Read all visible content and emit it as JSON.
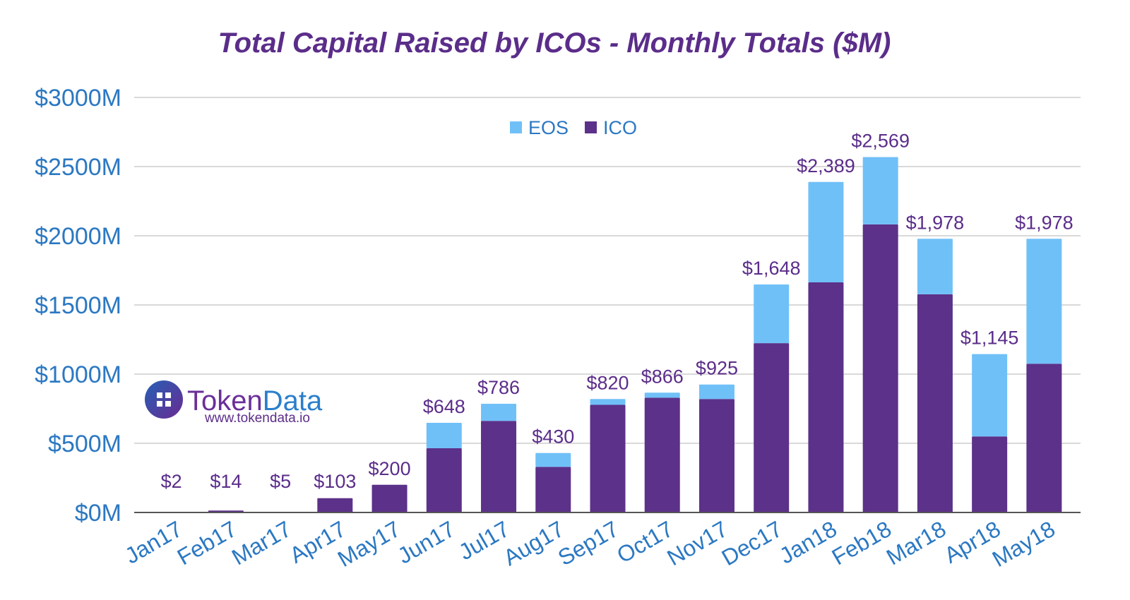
{
  "chart_data": {
    "type": "bar",
    "stacked": true,
    "title": "Total Capital Raised by ICOs - Monthly Totals ($M)",
    "xlabel": "",
    "ylabel": "",
    "ylim": [
      0,
      3000
    ],
    "yticks": [
      0,
      500,
      1000,
      1500,
      2000,
      2500,
      3000
    ],
    "ytick_labels": [
      "$0M",
      "$500M",
      "$1000M",
      "$1500M",
      "$2000M",
      "$2500M",
      "$3000M"
    ],
    "grid": true,
    "legend_position": "top-center",
    "categories": [
      "Jan17",
      "Feb17",
      "Mar17",
      "Apr17",
      "May17",
      "Jun17",
      "Jul17",
      "Aug17",
      "Sep17",
      "Oct17",
      "Nov17",
      "Dec17",
      "Jan18",
      "Feb18",
      "Mar18",
      "Apr18",
      "May18"
    ],
    "series": [
      {
        "name": "ICO",
        "color": "#5c3189",
        "values": [
          2,
          14,
          5,
          103,
          200,
          464,
          662,
          330,
          778,
          830,
          820,
          1224,
          1663,
          2082,
          1577,
          550,
          1075
        ]
      },
      {
        "name": "EOS",
        "color": "#70c0f8",
        "values": [
          0,
          0,
          0,
          0,
          0,
          184,
          124,
          100,
          42,
          36,
          105,
          424,
          726,
          487,
          401,
          595,
          903
        ]
      }
    ],
    "totals": [
      2,
      14,
      5,
      103,
      200,
      648,
      786,
      430,
      820,
      866,
      925,
      1648,
      2389,
      2569,
      1978,
      1145,
      1978
    ],
    "total_labels": [
      "$2",
      "$14",
      "$5",
      "$103",
      "$200",
      "$648",
      "$786",
      "$430",
      "$820",
      "$866",
      "$925",
      "$1,648",
      "$2,389",
      "$2,569",
      "$1,978",
      "$1,145",
      "$1,978"
    ],
    "legend": [
      "EOS",
      "ICO"
    ]
  },
  "watermark": {
    "brand": "TokenData",
    "brand_part1": "Token",
    "brand_part2": "Data",
    "url": "www.tokendata.io"
  }
}
